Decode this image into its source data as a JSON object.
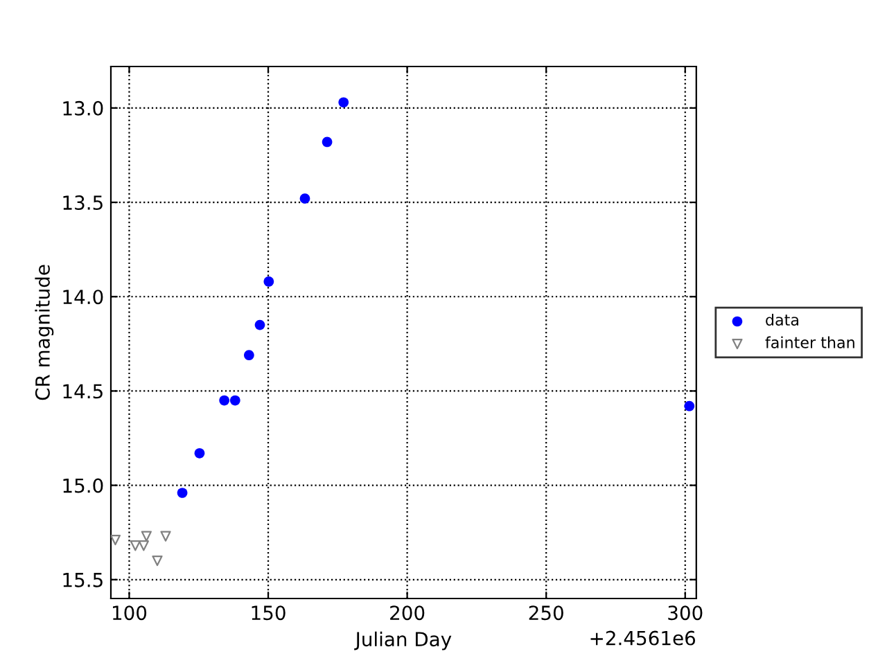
{
  "chart_data": {
    "type": "scatter",
    "xlabel": "Julian Day",
    "ylabel": "CR magnitude",
    "series": [
      {
        "name": "data",
        "color": "#0000ff",
        "marker": "circle",
        "x": [
          119.1,
          125.3,
          134.2,
          138.1,
          143.1,
          147.0,
          150.2,
          163.2,
          171.2,
          177.1,
          301.5
        ],
        "values": [
          15.04,
          14.83,
          14.55,
          14.55,
          14.31,
          14.15,
          13.92,
          13.48,
          13.18,
          12.97,
          14.58
        ]
      },
      {
        "name": "fainter than",
        "color": "#808080",
        "marker": "triangle",
        "x": [
          95.0,
          102.2,
          105.2,
          106.2,
          110.1,
          113.1
        ],
        "values": [
          15.29,
          15.32,
          15.32,
          15.27,
          15.4,
          15.27
        ]
      }
    ],
    "xlim": [
      93.4,
      304.0
    ],
    "ylim": [
      15.6,
      12.78
    ],
    "xticks": [
      100,
      150,
      200,
      250,
      300
    ],
    "yticks": [
      {
        "value": 13,
        "label": "13.0"
      },
      {
        "value": 13.5,
        "label": "13.5"
      },
      {
        "value": 14,
        "label": "14.0"
      },
      {
        "value": 14.5,
        "label": "14.5"
      },
      {
        "value": 15,
        "label": "15.0"
      },
      {
        "value": 15.5,
        "label": "15.5"
      }
    ],
    "annotations": [
      "+2.4561e6"
    ],
    "grid": true,
    "legend": "right"
  }
}
